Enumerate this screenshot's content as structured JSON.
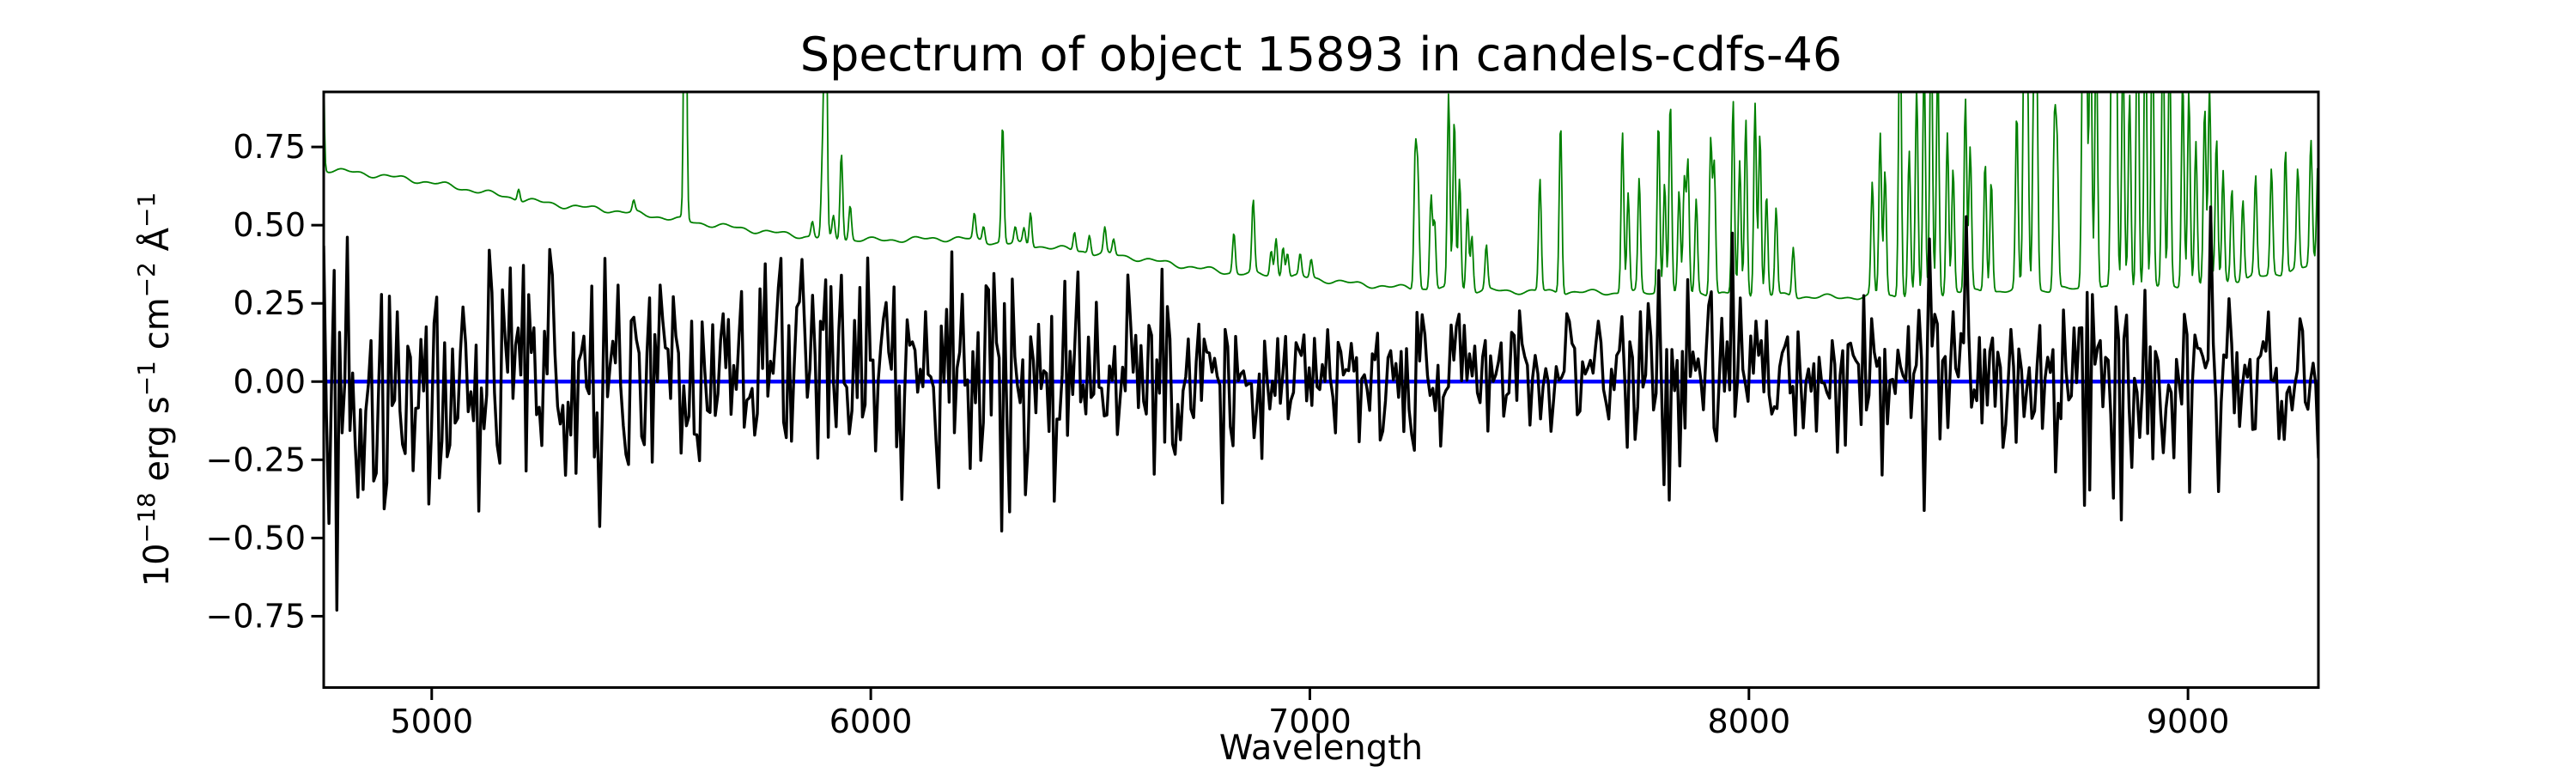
{
  "figure": {
    "background": "#ffffff",
    "title": "Spectrum of object 15893 in candels-cdfs-46"
  },
  "chart_data": {
    "type": "line",
    "title": "Spectrum of object 15893 in candels-cdfs-46",
    "xlabel": "Wavelength",
    "ylabel": "10⁻¹⁸ erg s⁻¹ cm⁻² Å⁻¹",
    "ylabel_parts": [
      {
        "t": "10",
        "sup": false
      },
      {
        "t": "−18",
        "sup": true
      },
      {
        "t": " erg s",
        "sup": false
      },
      {
        "t": "−1",
        "sup": true
      },
      {
        "t": " cm",
        "sup": false
      },
      {
        "t": "−2",
        "sup": true
      },
      {
        "t": " Å",
        "sup": false
      },
      {
        "t": "−1",
        "sup": true
      }
    ],
    "xlim": [
      4754,
      9297
    ],
    "ylim": [
      -0.978,
      0.926
    ],
    "xticks": [
      5000,
      6000,
      7000,
      8000,
      9000
    ],
    "yticks": [
      -0.75,
      -0.5,
      -0.25,
      0.0,
      0.25,
      0.5,
      0.75
    ],
    "grid": false,
    "legend": "none",
    "spine_color": "#000000",
    "zero_line": {
      "y": 0.0,
      "color": "#0000ff",
      "linewidth": 4.5,
      "style": "solid",
      "zorder": "below-flux"
    },
    "series": [
      {
        "name": "sky-noise-spectrum",
        "description": "green 1-sigma noise / sky spectrum: smooth declining continuum plus night-sky emission lines (OI 5577, NaD 5890/5896, OI 6300/6364 and OH forest beyond 7200), clipped at axes top",
        "color": "#008000",
        "linewidth": 1.8,
        "model": "baseline-plus-gaussian-lines",
        "n_points": 2200,
        "line_sigma_angstrom": 3.0,
        "wiggle": [
          [
            0.006,
            17.3,
            0.0
          ],
          [
            0.004,
            7.7,
            1.3
          ]
        ],
        "baseline": [
          [
            4750,
            0.68
          ],
          [
            4800,
            0.672
          ],
          [
            4900,
            0.656
          ],
          [
            5000,
            0.636
          ],
          [
            5100,
            0.61
          ],
          [
            5200,
            0.583
          ],
          [
            5300,
            0.563
          ],
          [
            5400,
            0.549
          ],
          [
            5500,
            0.531
          ],
          [
            5600,
            0.509
          ],
          [
            5700,
            0.49
          ],
          [
            5800,
            0.472
          ],
          [
            5900,
            0.458
          ],
          [
            6000,
            0.452
          ],
          [
            6100,
            0.455
          ],
          [
            6200,
            0.458
          ],
          [
            6300,
            0.443
          ],
          [
            6400,
            0.431
          ],
          [
            6500,
            0.413
          ],
          [
            6600,
            0.396
          ],
          [
            6700,
            0.373
          ],
          [
            6800,
            0.351
          ],
          [
            6900,
            0.341
          ],
          [
            7000,
            0.331
          ],
          [
            7100,
            0.313
          ],
          [
            7200,
            0.301
          ],
          [
            7300,
            0.294
          ],
          [
            7400,
            0.291
          ],
          [
            7500,
            0.288
          ],
          [
            7600,
            0.286
          ],
          [
            7700,
            0.284
          ],
          [
            7800,
            0.283
          ],
          [
            7900,
            0.281
          ],
          [
            8000,
            0.279
          ],
          [
            8100,
            0.273
          ],
          [
            8200,
            0.269
          ],
          [
            8300,
            0.273
          ],
          [
            8400,
            0.279
          ],
          [
            8500,
            0.286
          ],
          [
            8600,
            0.291
          ],
          [
            8700,
            0.294
          ],
          [
            8800,
            0.299
          ],
          [
            8900,
            0.301
          ],
          [
            9000,
            0.309
          ],
          [
            9100,
            0.321
          ],
          [
            9200,
            0.343
          ],
          [
            9260,
            0.361
          ],
          [
            9297,
            0.378
          ]
        ],
        "lines": [
          [
            4750.5,
            0.7
          ],
          [
            5198,
            0.04
          ],
          [
            5460,
            0.035
          ],
          [
            5577.3,
            1.2
          ],
          [
            5867,
            0.05
          ],
          [
            5890,
            0.25
          ],
          [
            5897,
            1.05
          ],
          [
            5915,
            0.07
          ],
          [
            5933,
            0.28
          ],
          [
            5953,
            0.11
          ],
          [
            6236,
            0.08
          ],
          [
            6257,
            0.05
          ],
          [
            6300.3,
            0.38
          ],
          [
            6329,
            0.05
          ],
          [
            6349,
            0.05
          ],
          [
            6363.8,
            0.11
          ],
          [
            6464,
            0.06
          ],
          [
            6498,
            0.06
          ],
          [
            6533,
            0.08
          ],
          [
            6553,
            0.05
          ],
          [
            6827,
            0.13
          ],
          [
            6871,
            0.23
          ],
          [
            6912,
            0.08
          ],
          [
            6923,
            0.12
          ],
          [
            6939,
            0.1
          ],
          [
            6949,
            0.08
          ],
          [
            6978,
            0.07
          ],
          [
            7003,
            0.06
          ],
          [
            7240,
            0.42
          ],
          [
            7246,
            0.35
          ],
          [
            7276,
            0.3
          ],
          [
            7284,
            0.22
          ],
          [
            7316,
            0.62
          ],
          [
            7329,
            0.55
          ],
          [
            7341,
            0.36
          ],
          [
            7359,
            0.26
          ],
          [
            7369,
            0.18
          ],
          [
            7402,
            0.14
          ],
          [
            7524,
            0.36
          ],
          [
            7571,
            0.55
          ],
          [
            7712,
            0.52
          ],
          [
            7725,
            0.32
          ],
          [
            7750,
            0.36
          ],
          [
            7794,
            0.55
          ],
          [
            7808,
            0.36
          ],
          [
            7821,
            0.62
          ],
          [
            7841,
            0.32
          ],
          [
            7853,
            0.36
          ],
          [
            7861,
            0.42
          ],
          [
            7880,
            0.3
          ],
          [
            7913,
            0.5
          ],
          [
            7921,
            0.42
          ],
          [
            7964,
            0.62
          ],
          [
            7979,
            0.42
          ],
          [
            7993,
            0.56
          ],
          [
            8014,
            0.62
          ],
          [
            8025,
            0.52
          ],
          [
            8040,
            0.32
          ],
          [
            8062,
            0.28
          ],
          [
            8101,
            0.16
          ],
          [
            8281,
            0.36
          ],
          [
            8299,
            0.52
          ],
          [
            8310,
            0.4
          ],
          [
            8344,
            0.98
          ],
          [
            8365,
            0.46
          ],
          [
            8382,
            0.66
          ],
          [
            8399,
            0.76
          ],
          [
            8415,
            0.92
          ],
          [
            8430,
            0.76
          ],
          [
            8452,
            0.52
          ],
          [
            8465,
            0.4
          ],
          [
            8493,
            0.62
          ],
          [
            8504,
            0.46
          ],
          [
            8538,
            0.42
          ],
          [
            8552,
            0.36
          ],
          [
            8610,
            0.56
          ],
          [
            8627,
            0.88
          ],
          [
            8634,
            0.72
          ],
          [
            8649,
            0.66
          ],
          [
            8655,
            0.76
          ],
          [
            8696,
            0.52
          ],
          [
            8702,
            0.42
          ],
          [
            8761,
            0.98
          ],
          [
            8768,
            0.88
          ],
          [
            8778,
            0.92
          ],
          [
            8791,
            0.86
          ],
          [
            8827,
            1.05
          ],
          [
            8836,
            0.98
          ],
          [
            8852,
            0.78
          ],
          [
            8867,
            0.62
          ],
          [
            8885,
            1.05
          ],
          [
            8903,
            0.98
          ],
          [
            8919,
            0.92
          ],
          [
            8943,
            0.88
          ],
          [
            8958,
            0.78
          ],
          [
            8988,
            0.66
          ],
          [
            9002,
            0.62
          ],
          [
            9018,
            0.46
          ],
          [
            9038,
            0.56
          ],
          [
            9049,
            0.62
          ],
          [
            9065,
            0.46
          ],
          [
            9080,
            0.36
          ],
          [
            9100,
            0.3
          ],
          [
            9125,
            0.26
          ],
          [
            9154,
            0.32
          ],
          [
            9190,
            0.34
          ],
          [
            9222,
            0.4
          ],
          [
            9250,
            0.32
          ],
          [
            9280,
            0.4
          ],
          [
            9296,
            0.32
          ]
        ]
      },
      {
        "name": "object-flux",
        "description": "black noisy object flux oscillating about zero; amplitude tracks the noise spectrum (larger at blue end and under sky lines), extremes about +0.84 / -0.89",
        "color": "#000000",
        "linewidth": 3.4,
        "model": "seeded-gaussian-noise",
        "seed": 15893,
        "n_points": 760,
        "bias": 0.02,
        "sigma_scale": 0.36,
        "sigma_line_weight": 0.55,
        "clamp": [
          -0.893,
          0.845
        ]
      }
    ]
  }
}
